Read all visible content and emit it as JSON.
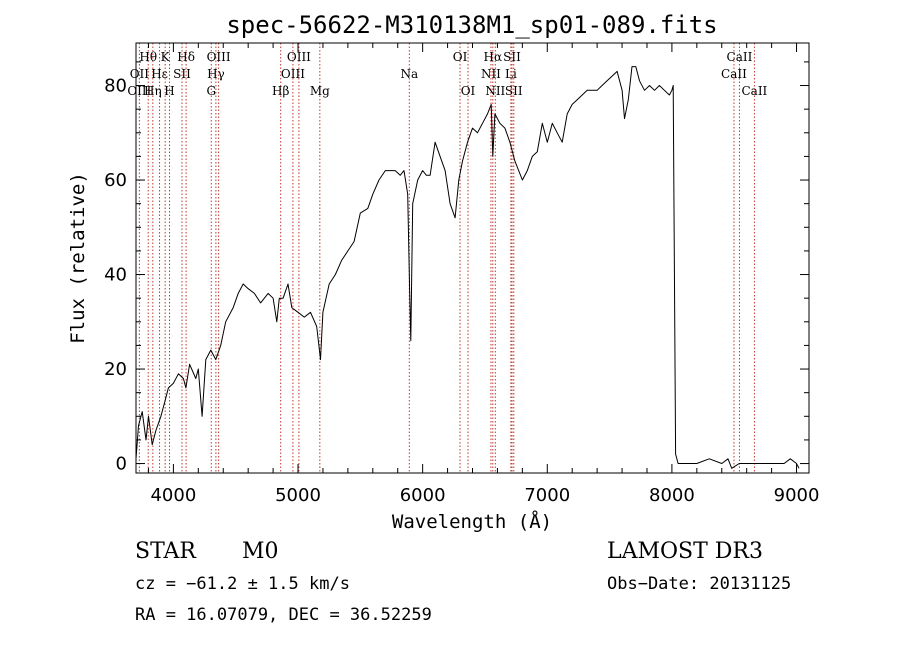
{
  "chart_data": {
    "type": "line",
    "title": "spec-56622-M310138M1_sp01-089.fits",
    "xlabel": "Wavelength (Å)",
    "ylabel": "Flux (relative)",
    "xlim": [
      3700,
      9100
    ],
    "ylim": [
      -2,
      89
    ],
    "x_ticks": [
      "4000",
      "5000",
      "6000",
      "7000",
      "8000",
      "9000"
    ],
    "y_ticks": [
      "0",
      "20",
      "40",
      "60",
      "80"
    ],
    "series": [
      {
        "name": "spectrum",
        "points": [
          [
            3700,
            1
          ],
          [
            3720,
            8
          ],
          [
            3750,
            11
          ],
          [
            3780,
            5
          ],
          [
            3800,
            10
          ],
          [
            3830,
            4
          ],
          [
            3860,
            7
          ],
          [
            3900,
            10
          ],
          [
            3930,
            13
          ],
          [
            3960,
            16
          ],
          [
            4000,
            17
          ],
          [
            4040,
            19
          ],
          [
            4080,
            18
          ],
          [
            4100,
            16
          ],
          [
            4130,
            21
          ],
          [
            4180,
            18
          ],
          [
            4200,
            20
          ],
          [
            4230,
            10
          ],
          [
            4260,
            22
          ],
          [
            4300,
            24
          ],
          [
            4340,
            22
          ],
          [
            4380,
            25
          ],
          [
            4420,
            30
          ],
          [
            4480,
            33
          ],
          [
            4520,
            36
          ],
          [
            4560,
            38
          ],
          [
            4600,
            37
          ],
          [
            4650,
            36
          ],
          [
            4700,
            34
          ],
          [
            4760,
            36
          ],
          [
            4800,
            35
          ],
          [
            4830,
            30
          ],
          [
            4850,
            35
          ],
          [
            4880,
            35
          ],
          [
            4920,
            38
          ],
          [
            4950,
            33
          ],
          [
            5000,
            32
          ],
          [
            5050,
            31
          ],
          [
            5100,
            32
          ],
          [
            5150,
            29
          ],
          [
            5180,
            22
          ],
          [
            5200,
            32
          ],
          [
            5250,
            38
          ],
          [
            5300,
            40
          ],
          [
            5350,
            43
          ],
          [
            5400,
            45
          ],
          [
            5450,
            47
          ],
          [
            5500,
            53
          ],
          [
            5560,
            54
          ],
          [
            5600,
            57
          ],
          [
            5650,
            60
          ],
          [
            5700,
            62
          ],
          [
            5750,
            62
          ],
          [
            5780,
            62
          ],
          [
            5820,
            61
          ],
          [
            5850,
            62
          ],
          [
            5880,
            57
          ],
          [
            5895,
            37
          ],
          [
            5905,
            26
          ],
          [
            5920,
            55
          ],
          [
            5960,
            60
          ],
          [
            6000,
            62
          ],
          [
            6030,
            61
          ],
          [
            6060,
            61
          ],
          [
            6100,
            68
          ],
          [
            6140,
            65
          ],
          [
            6180,
            62
          ],
          [
            6220,
            55
          ],
          [
            6260,
            52
          ],
          [
            6290,
            60
          ],
          [
            6320,
            64
          ],
          [
            6360,
            68
          ],
          [
            6400,
            71
          ],
          [
            6440,
            70
          ],
          [
            6480,
            72
          ],
          [
            6520,
            74
          ],
          [
            6550,
            76
          ],
          [
            6563,
            65
          ],
          [
            6580,
            74
          ],
          [
            6620,
            72
          ],
          [
            6660,
            71
          ],
          [
            6700,
            68
          ],
          [
            6740,
            64
          ],
          [
            6800,
            60
          ],
          [
            6840,
            62
          ],
          [
            6880,
            65
          ],
          [
            6920,
            66
          ],
          [
            6960,
            72
          ],
          [
            7000,
            68
          ],
          [
            7040,
            72
          ],
          [
            7080,
            70
          ],
          [
            7120,
            68
          ],
          [
            7160,
            74
          ],
          [
            7200,
            76
          ],
          [
            7240,
            77
          ],
          [
            7280,
            78
          ],
          [
            7320,
            79
          ],
          [
            7360,
            79
          ],
          [
            7400,
            79
          ],
          [
            7440,
            80
          ],
          [
            7480,
            81
          ],
          [
            7520,
            82
          ],
          [
            7560,
            83
          ],
          [
            7600,
            79
          ],
          [
            7620,
            73
          ],
          [
            7650,
            77
          ],
          [
            7680,
            84
          ],
          [
            7710,
            84
          ],
          [
            7740,
            81
          ],
          [
            7780,
            79
          ],
          [
            7820,
            80
          ],
          [
            7860,
            79
          ],
          [
            7900,
            80
          ],
          [
            7940,
            79
          ],
          [
            7980,
            78
          ],
          [
            8000,
            79
          ],
          [
            8010,
            80
          ],
          [
            8030,
            2
          ],
          [
            8050,
            0
          ],
          [
            8100,
            0
          ],
          [
            8200,
            0
          ],
          [
            8300,
            1
          ],
          [
            8400,
            0
          ],
          [
            8450,
            1
          ],
          [
            8480,
            -1
          ],
          [
            8540,
            0
          ],
          [
            8600,
            0
          ],
          [
            8700,
            0
          ],
          [
            8800,
            0
          ],
          [
            8900,
            0
          ],
          [
            8950,
            1
          ],
          [
            9000,
            0
          ],
          [
            9020,
            -1
          ]
        ]
      }
    ],
    "lines": [
      {
        "label": "Hθ",
        "wl": 3798,
        "row": 1
      },
      {
        "label": "OII",
        "wl": 3727,
        "row": 2
      },
      {
        "label": "OIII",
        "wl": 3727,
        "row": 3
      },
      {
        "label": "K",
        "wl": 3934,
        "row": 1
      },
      {
        "label": "Hε",
        "wl": 3889,
        "row": 2
      },
      {
        "label": "Hη",
        "wl": 3835,
        "row": 3
      },
      {
        "label": "Hδ",
        "wl": 4102,
        "row": 1
      },
      {
        "label": "SII",
        "wl": 4069,
        "row": 2
      },
      {
        "label": "H",
        "wl": 3969,
        "row": 3
      },
      {
        "label": "OIII",
        "wl": 4363,
        "row": 1
      },
      {
        "label": "Hγ",
        "wl": 4341,
        "row": 2
      },
      {
        "label": "G",
        "wl": 4304,
        "row": 3
      },
      {
        "label": "Hβ",
        "wl": 4861,
        "row": 3
      },
      {
        "label": "OIII",
        "wl": 5007,
        "row": 1
      },
      {
        "label": "OIII",
        "wl": 4959,
        "row": 2
      },
      {
        "label": "Mg",
        "wl": 5175,
        "row": 3
      },
      {
        "label": "Na",
        "wl": 5893,
        "row": 2
      },
      {
        "label": "OI",
        "wl": 6300,
        "row": 1
      },
      {
        "label": "OI",
        "wl": 6364,
        "row": 3
      },
      {
        "label": "Hα",
        "wl": 6563,
        "row": 1
      },
      {
        "label": "NII",
        "wl": 6548,
        "row": 2
      },
      {
        "label": "NII",
        "wl": 6583,
        "row": 3
      },
      {
        "label": "SII",
        "wl": 6717,
        "row": 1
      },
      {
        "label": "Li",
        "wl": 6708,
        "row": 2
      },
      {
        "label": "SII",
        "wl": 6731,
        "row": 3
      },
      {
        "label": "CaII",
        "wl": 8542,
        "row": 1
      },
      {
        "label": "CaII",
        "wl": 8498,
        "row": 2
      },
      {
        "label": "CaII",
        "wl": 8662,
        "row": 3
      }
    ]
  },
  "info": {
    "class": "STAR",
    "subclass": "M0",
    "survey": "LAMOST DR3",
    "cz": "cz = −61.2 ± 1.5 km/s",
    "obs_date": "Obs−Date: 20131125",
    "coords": "RA =  16.07079, DEC =  36.52259"
  },
  "colors": {
    "line_marker": "#c0392b",
    "spectrum": "#000000"
  }
}
